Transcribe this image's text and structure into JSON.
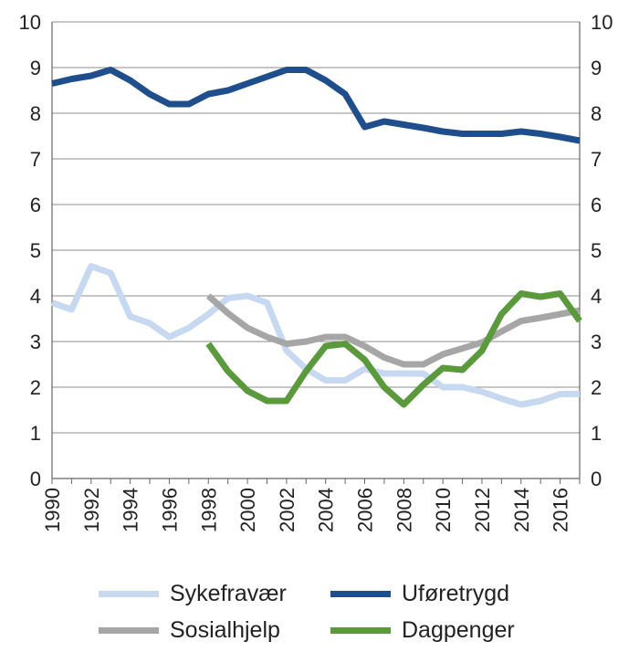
{
  "chart_data": {
    "type": "line",
    "title": "",
    "xlabel": "",
    "ylabel": "",
    "ylim": [
      0,
      10
    ],
    "xlim": [
      1990,
      2017
    ],
    "grid": true,
    "legend_position": "bottom",
    "y_ticks": [
      "0",
      "1",
      "2",
      "3",
      "4",
      "5",
      "6",
      "7",
      "8",
      "9",
      "10"
    ],
    "x_ticks": [
      "1990",
      "1992",
      "1994",
      "1996",
      "1998",
      "2000",
      "2002",
      "2004",
      "2006",
      "2008",
      "2010",
      "2012",
      "2014",
      "2016"
    ],
    "series": [
      {
        "name": "Sykefravær",
        "color": "#c6d9f1",
        "x": [
          1990,
          1991,
          1992,
          1993,
          1994,
          1995,
          1996,
          1997,
          1998,
          1999,
          2000,
          2001,
          2002,
          2003,
          2004,
          2005,
          2006,
          2007,
          2008,
          2009,
          2010,
          2011,
          2012,
          2013,
          2014,
          2015,
          2016,
          2017
        ],
        "y": [
          3.85,
          3.7,
          4.65,
          4.5,
          3.55,
          3.4,
          3.1,
          3.3,
          3.6,
          3.95,
          4.0,
          3.85,
          2.8,
          2.4,
          2.15,
          2.15,
          2.4,
          2.3,
          2.3,
          2.3,
          2.0,
          2.0,
          1.9,
          1.75,
          1.62,
          1.7,
          1.85,
          1.85
        ]
      },
      {
        "name": "Uføretrygd",
        "color": "#1f4e8c",
        "x": [
          1990,
          1991,
          1992,
          1993,
          1994,
          1995,
          1996,
          1997,
          1998,
          1999,
          2000,
          2001,
          2002,
          2003,
          2004,
          2005,
          2006,
          2007,
          2008,
          2009,
          2010,
          2011,
          2012,
          2013,
          2014,
          2015,
          2016,
          2017
        ],
        "y": [
          8.65,
          8.75,
          8.82,
          8.95,
          8.72,
          8.42,
          8.2,
          8.2,
          8.42,
          8.5,
          8.65,
          8.8,
          8.95,
          8.95,
          8.72,
          8.42,
          7.7,
          7.82,
          7.75,
          7.68,
          7.6,
          7.55,
          7.55,
          7.55,
          7.6,
          7.55,
          7.48,
          7.4
        ]
      },
      {
        "name": "Sosialhjelp",
        "color": "#a6a6a6",
        "x": [
          1998,
          1999,
          2000,
          2001,
          2002,
          2003,
          2004,
          2005,
          2006,
          2007,
          2008,
          2009,
          2010,
          2011,
          2012,
          2013,
          2014,
          2015,
          2016,
          2017
        ],
        "y": [
          4.0,
          3.62,
          3.3,
          3.1,
          2.95,
          3.0,
          3.1,
          3.1,
          2.9,
          2.65,
          2.5,
          2.5,
          2.72,
          2.85,
          2.98,
          3.22,
          3.45,
          3.52,
          3.6,
          3.68
        ]
      },
      {
        "name": "Dagpenger",
        "color": "#5b9a3c",
        "x": [
          1998,
          1999,
          2000,
          2001,
          2002,
          2003,
          2004,
          2005,
          2006,
          2007,
          2008,
          2009,
          2010,
          2011,
          2012,
          2013,
          2014,
          2015,
          2016,
          2017
        ],
        "y": [
          2.95,
          2.35,
          1.92,
          1.7,
          1.7,
          2.35,
          2.9,
          2.95,
          2.6,
          2.0,
          1.62,
          2.05,
          2.42,
          2.38,
          2.8,
          3.6,
          4.05,
          3.98,
          4.05,
          3.45
        ]
      }
    ]
  }
}
